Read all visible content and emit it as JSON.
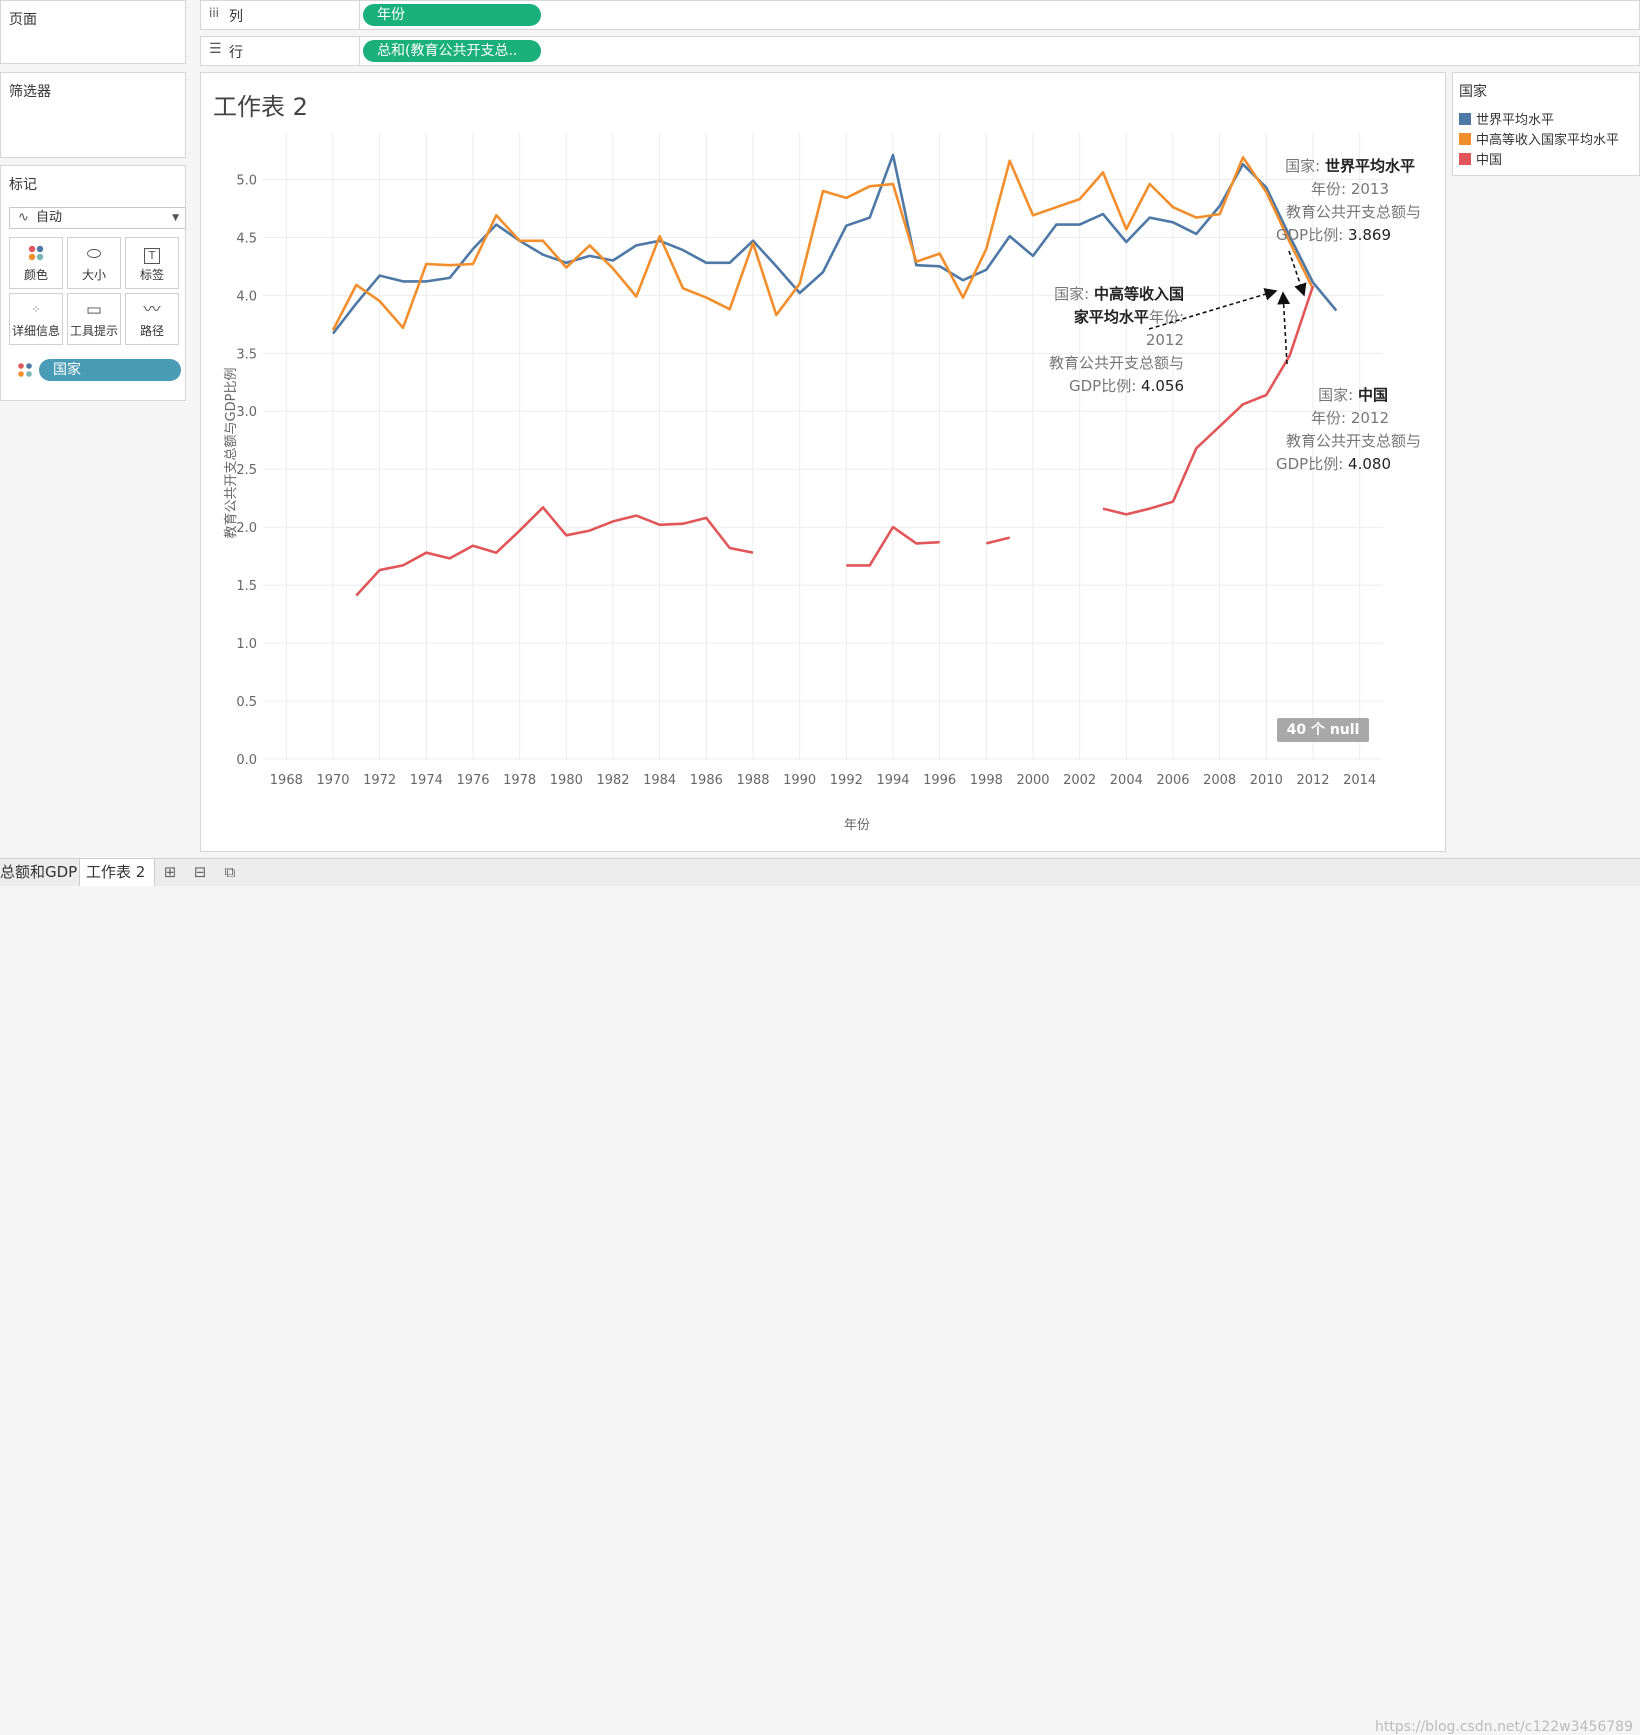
{
  "left_panel": {
    "pages_title": "页面",
    "filters_title": "筛选器",
    "marks_title": "标记",
    "mark_type": "自动",
    "buttons": {
      "color": "颜色",
      "size": "大小",
      "label": "标签",
      "detail": "详细信息",
      "tooltip": "工具提示",
      "path": "路径"
    },
    "country_pill": "国家"
  },
  "shelves": {
    "columns_label": "列",
    "columns_pill": "年份",
    "rows_label": "行",
    "rows_pill": "总和(教育公共开支总.."
  },
  "sheet": {
    "title": "工作表 2",
    "null_badge": "40 个 null"
  },
  "legend": {
    "title": "国家",
    "items": [
      {
        "label": "世界平均水平",
        "color": "#4e79a7"
      },
      {
        "label": "中高等收入国家平均水平",
        "color": "#f28e2b"
      },
      {
        "label": "中国",
        "color": "#e15759"
      }
    ]
  },
  "annotations": {
    "world": {
      "line1_prefix": "国家: ",
      "line1_value": "世界平均水平",
      "line2": "年份: 2013",
      "line3": "教育公共开支总额与",
      "line4_prefix": "GDP比例: ",
      "line4_value": "3.869"
    },
    "umic": {
      "line1_prefix": "国家: ",
      "line1_value": "中高等收入国",
      "line2_value": "家平均水平",
      "line2_suffix": "年份:",
      "line3": "2012",
      "line4": "教育公共开支总额与",
      "line5_prefix": "GDP比例: ",
      "line5_value": "4.056"
    },
    "china": {
      "line1_prefix": "国家: ",
      "line1_value": "中国",
      "line2": "年份: 2012",
      "line3": "教育公共开支总额与",
      "line4_prefix": "GDP比例: ",
      "line4_value": "4.080"
    }
  },
  "chart_data": {
    "type": "line",
    "xlabel": "年份",
    "ylabel": "教育公共开支总额与GDP比例",
    "xlim": [
      1967,
      2015
    ],
    "ylim": [
      0,
      5.4
    ],
    "x_ticks": [
      1968,
      1970,
      1972,
      1974,
      1976,
      1978,
      1980,
      1982,
      1984,
      1986,
      1988,
      1990,
      1992,
      1994,
      1996,
      1998,
      2000,
      2002,
      2004,
      2006,
      2008,
      2010,
      2012,
      2014
    ],
    "y_ticks": [
      "0.0",
      "0.5",
      "1.0",
      "1.5",
      "2.0",
      "2.5",
      "3.0",
      "3.5",
      "4.0",
      "4.5",
      "5.0"
    ],
    "grid": true,
    "legend_position": "right",
    "x": [
      1970,
      1971,
      1972,
      1973,
      1974,
      1975,
      1976,
      1977,
      1978,
      1979,
      1980,
      1981,
      1982,
      1983,
      1984,
      1985,
      1986,
      1987,
      1988,
      1989,
      1990,
      1991,
      1992,
      1993,
      1994,
      1995,
      1996,
      1997,
      1998,
      1999,
      2000,
      2001,
      2002,
      2003,
      2004,
      2005,
      2006,
      2007,
      2008,
      2009,
      2010,
      2011,
      2012,
      2013
    ],
    "series": [
      {
        "name": "世界平均水平",
        "color": "#4e79a7",
        "values": [
          3.67,
          3.93,
          4.17,
          4.12,
          4.12,
          4.15,
          4.4,
          4.61,
          4.47,
          4.35,
          4.28,
          4.34,
          4.3,
          4.43,
          4.47,
          4.39,
          4.28,
          4.28,
          4.47,
          4.25,
          4.02,
          4.2,
          4.6,
          4.67,
          5.21,
          4.26,
          4.25,
          4.13,
          4.22,
          4.51,
          4.34,
          4.61,
          4.61,
          4.7,
          4.46,
          4.67,
          4.63,
          4.53,
          4.77,
          5.13,
          4.93,
          4.51,
          4.11,
          3.869
        ]
      },
      {
        "name": "中高等收入国家平均水平",
        "color": "#f28e2b",
        "values": [
          3.7,
          4.09,
          3.95,
          3.72,
          4.27,
          4.26,
          4.27,
          4.69,
          4.47,
          4.47,
          4.24,
          4.43,
          4.23,
          3.99,
          4.51,
          4.06,
          3.98,
          3.88,
          4.45,
          3.83,
          4.1,
          4.9,
          4.84,
          4.94,
          4.96,
          4.29,
          4.36,
          3.98,
          4.4,
          5.16,
          4.69,
          4.76,
          4.83,
          5.06,
          4.57,
          4.96,
          4.76,
          4.67,
          4.7,
          5.19,
          4.89,
          4.46,
          4.056,
          null
        ]
      },
      {
        "name": "中国",
        "color": "#e15759",
        "values": [
          null,
          1.41,
          1.63,
          1.67,
          1.78,
          1.73,
          1.84,
          1.78,
          1.97,
          2.17,
          1.93,
          1.97,
          2.05,
          2.1,
          2.02,
          2.03,
          2.08,
          1.82,
          1.78,
          null,
          null,
          null,
          1.67,
          1.67,
          2.0,
          1.86,
          1.87,
          null,
          1.86,
          1.91,
          null,
          null,
          null,
          2.16,
          2.11,
          2.16,
          2.22,
          2.68,
          2.87,
          3.06,
          3.14,
          3.48,
          4.08,
          null
        ]
      }
    ]
  },
  "tabs": {
    "tab1": "总额和GDP",
    "tab2": "工作表 2"
  },
  "watermark": "https://blog.csdn.net/c122w3456789"
}
